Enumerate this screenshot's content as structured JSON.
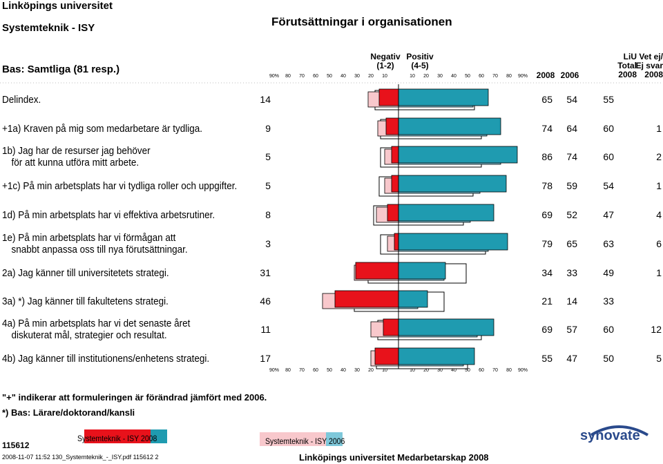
{
  "header": {
    "university": "Linköpings universitet",
    "department": "Systemteknik - ISY",
    "base": "Bas: Samtliga (81 resp.)",
    "title": "Förutsättningar i organisationen"
  },
  "columns": {
    "negative": "Negativ",
    "negative_range": "(1-2)",
    "positive": "Positiv",
    "positive_range": "(4-5)",
    "y2008": "2008",
    "y2006": "2006",
    "liu_top": "LiU",
    "liu_mid": "Total",
    "liu_bot": "2008",
    "ej_top": "Vet ej/",
    "ej_mid": "Ej svar",
    "ej_bot": "2008"
  },
  "axis_ticks": [
    "90%",
    "80",
    "70",
    "60",
    "50",
    "40",
    "30",
    "20",
    "10",
    "",
    "10",
    "20",
    "30",
    "40",
    "50",
    "60",
    "70",
    "80",
    "90%"
  ],
  "rows": [
    {
      "label": [
        "Delindex."
      ],
      "left": "14",
      "v2008": "65",
      "v2006": "54",
      "liu": "55",
      "ej": ""
    },
    {
      "label": [
        "+1a) Kraven på mig som medarbetare är tydliga."
      ],
      "left": "9",
      "v2008": "74",
      "v2006": "64",
      "liu": "60",
      "ej": "1"
    },
    {
      "label": [
        "1b) Jag har de resurser jag behöver",
        "för att kunna utföra mitt arbete."
      ],
      "left": "5",
      "v2008": "86",
      "v2006": "74",
      "liu": "60",
      "ej": "2"
    },
    {
      "label": [
        "+1c) På min arbetsplats har vi tydliga roller och uppgifter."
      ],
      "left": "5",
      "v2008": "78",
      "v2006": "59",
      "liu": "54",
      "ej": "1"
    },
    {
      "label": [
        "1d) På min arbetsplats har vi effektiva arbetsrutiner."
      ],
      "left": "8",
      "v2008": "69",
      "v2006": "52",
      "liu": "47",
      "ej": "4"
    },
    {
      "label": [
        "1e) På min arbetsplats har vi förmågan att",
        "snabbt anpassa oss till nya förutsättningar."
      ],
      "left": "3",
      "v2008": "79",
      "v2006": "65",
      "liu": "63",
      "ej": "6"
    },
    {
      "label": [
        "2a) Jag känner till universitetets strategi."
      ],
      "left": "31",
      "v2008": "34",
      "v2006": "33",
      "liu": "49",
      "ej": "1"
    },
    {
      "label": [
        "3a) *) Jag känner till fakultetens strategi."
      ],
      "left": "46",
      "v2008": "21",
      "v2006": "14",
      "liu": "33",
      "ej": ""
    },
    {
      "label": [
        "4a) På min arbetsplats har vi det senaste året",
        "diskuterat mål, strategier och resultat."
      ],
      "left": "11",
      "v2008": "69",
      "v2006": "57",
      "liu": "60",
      "ej": "12"
    },
    {
      "label": [
        "4b) Jag känner till institutionens/enhetens strategi."
      ],
      "left": "17",
      "v2008": "55",
      "v2006": "47",
      "liu": "50",
      "ej": "5"
    }
  ],
  "chart_data": {
    "type": "bar",
    "orientation": "horizontal-diverging",
    "title": "Förutsättningar i organisationen",
    "categories": [
      "Delindex",
      "1a",
      "1b",
      "1c",
      "1d",
      "1e",
      "2a",
      "3a",
      "4a",
      "4b"
    ],
    "series": [
      {
        "name": "Negativ 2008",
        "values": [
          14,
          9,
          5,
          5,
          8,
          3,
          31,
          46,
          11,
          17
        ],
        "color": "#e8121b"
      },
      {
        "name": "Negativ 2006",
        "values": [
          22,
          15,
          10,
          10,
          16,
          8,
          32,
          55,
          20,
          20
        ],
        "color": "#f8c8cc"
      },
      {
        "name": "Negativ LiU Total 2008",
        "values": [
          17,
          13,
          13,
          14,
          18,
          13,
          22,
          32,
          15,
          16
        ],
        "color": "#ffffff"
      },
      {
        "name": "Positiv 2008",
        "values": [
          65,
          74,
          86,
          78,
          69,
          79,
          34,
          21,
          69,
          55
        ],
        "color": "#1f9bb0"
      },
      {
        "name": "Positiv 2006",
        "values": [
          54,
          64,
          74,
          59,
          52,
          65,
          33,
          14,
          57,
          47
        ],
        "color": "#7ec8da"
      },
      {
        "name": "Positiv LiU Total 2008",
        "values": [
          55,
          60,
          60,
          54,
          47,
          63,
          49,
          33,
          60,
          50
        ],
        "color": "#ffffff"
      }
    ],
    "xlim": [
      -90,
      90
    ],
    "xlabel": "%",
    "gridlines": false
  },
  "footnotes": {
    "plus": "\"+\" indikerar att formuleringen är förändrad jämfört med 2006.",
    "star": "*) Bas: Lärare/doktorand/kansli"
  },
  "legend": {
    "label2008": "Systemteknik - ISY 2008",
    "label2006": "Systemteknik - ISY 2006"
  },
  "footer": {
    "code": "115612",
    "meta": "2008-11-07 11:52 130_Systemteknik_-_ISY.pdf 115612  2",
    "title": "Linköpings universitet Medarbetarskap 2008",
    "logo": "synovate"
  },
  "colors": {
    "neg2008": "#e8121b",
    "neg2006": "#f8c8cc",
    "pos2008": "#1f9bb0",
    "pos2006": "#7ec8da",
    "liu": "#ffffff",
    "logo": "#2a4a8c"
  }
}
